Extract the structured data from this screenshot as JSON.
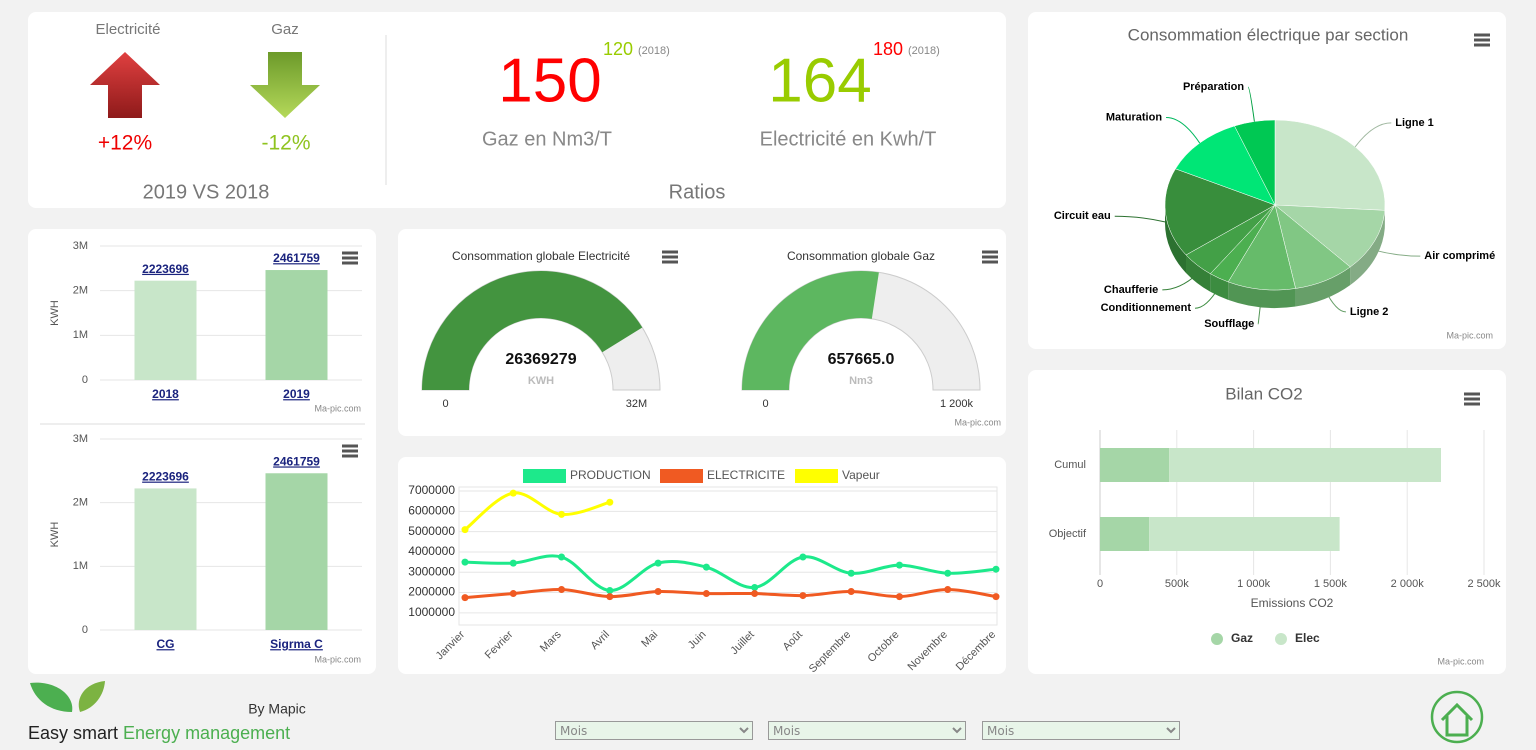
{
  "kpi": {
    "items": [
      {
        "label": "Electricité",
        "change": "+12%"
      },
      {
        "label": "Gaz",
        "change": "-12%"
      }
    ],
    "caption": "2019 VS 2018"
  },
  "ratios": {
    "items": [
      {
        "value": 150,
        "previous": 120,
        "previous_year": "(2018)",
        "label": "Gaz en Nm3/T"
      },
      {
        "value": 164,
        "previous": 180,
        "previous_year": "(2018)",
        "label": "Electricité en Kwh/T"
      }
    ],
    "caption": "Ratios"
  },
  "chart_data": [
    {
      "type": "bar",
      "categories": [
        "2018",
        "2019"
      ],
      "values": [
        2223696,
        2461759
      ],
      "colors": [
        "#c8e6c9",
        "#a5d6a7"
      ],
      "ylabel": "KWH",
      "ylim": [
        0,
        3000000
      ],
      "yticks": [
        0,
        {
          "value": 1000000,
          "label": "1M"
        },
        {
          "value": 2000000,
          "label": "2M"
        },
        {
          "value": 3000000,
          "label": "3M"
        }
      ],
      "grid": true,
      "credit": "Ma-pic.com"
    },
    {
      "type": "bar",
      "categories": [
        "CG",
        "Sigrma C"
      ],
      "values": [
        2223696,
        2461759
      ],
      "colors": [
        "#c8e6c9",
        "#a5d6a7"
      ],
      "ylabel": "KWH",
      "ylim": [
        0,
        3000000
      ],
      "yticks": [
        0,
        {
          "value": 1000000,
          "label": "1M"
        },
        {
          "value": 2000000,
          "label": "2M"
        },
        {
          "value": 3000000,
          "label": "3M"
        }
      ],
      "grid": true,
      "credit": "Ma-pic.com"
    },
    {
      "type": "gauge",
      "title": "Consommation globale Electricité",
      "values": [
        26369279
      ],
      "unit": "KWH",
      "color": "#43943f",
      "ylim": [
        0,
        32000000
      ],
      "yticks": [
        0,
        {
          "value": 32000000,
          "label": "32M"
        }
      ]
    },
    {
      "type": "gauge",
      "title": "Consommation globale Gaz",
      "values": [
        657665
      ],
      "value_labels": [
        "657665.0"
      ],
      "unit": "Nm3",
      "color": "#5db760",
      "ylim": [
        0,
        1200000
      ],
      "yticks": [
        0,
        {
          "value": 1200000,
          "label": "1 200k"
        }
      ],
      "credit": "Ma-pic.com"
    },
    {
      "type": "line",
      "categories": [
        "Janvier",
        "Fevrier",
        "Mars",
        "Avril",
        "Mai",
        "Juin",
        "Juillet",
        "Août",
        "Septembre",
        "Octobre",
        "Novembre",
        "Décembre"
      ],
      "series": [
        {
          "name": "PRODUCTION",
          "color": "#1de98b",
          "values": [
            3500000,
            3450000,
            3750000,
            2100000,
            3450000,
            3250000,
            2250000,
            3750000,
            2950000,
            3350000,
            2950000,
            3150000
          ]
        },
        {
          "name": "ELECTRICITE",
          "color": "#f05a22",
          "values": [
            1750000,
            1950000,
            2150000,
            1800000,
            2050000,
            1950000,
            1950000,
            1850000,
            2050000,
            1800000,
            2150000,
            1800000
          ]
        },
        {
          "name": "Vapeur",
          "color": "#ffff00",
          "values": [
            5100000,
            6900000,
            5850000,
            6450000,
            null,
            null,
            null,
            null,
            null,
            null,
            null,
            null
          ]
        }
      ],
      "ylim": [
        400000,
        7200000
      ],
      "yticks": [
        1000000,
        2000000,
        3000000,
        4000000,
        5000000,
        6000000,
        7000000
      ],
      "grid": true,
      "legend": "top"
    },
    {
      "type": "pie",
      "title": "Consommation électrique par section",
      "categories": [
        "Ligne 1",
        "Air comprimé",
        "Ligne 2",
        "Soufflage",
        "Conditionnement",
        "Chaufferie",
        "Circuit eau",
        "Maturation",
        "Préparation"
      ],
      "values": [
        26,
        12,
        9,
        10,
        3,
        5,
        17,
        12,
        6
      ],
      "colors": [
        "#c8e6c9",
        "#a5d6a7",
        "#81c784",
        "#66bb6a",
        "#4caf50",
        "#43a047",
        "#388e3c",
        "#00e676",
        "#00c853"
      ],
      "credit": "Ma-pic.com"
    },
    {
      "type": "bar",
      "orientation": "horizontal",
      "stacked": true,
      "title": "Bilan CO2",
      "categories": [
        "Cumul",
        "Objectif"
      ],
      "series": [
        {
          "name": "Gaz",
          "color": "#a5d6a7",
          "values": [
            450000,
            320000
          ]
        },
        {
          "name": "Elec",
          "color": "#c8e6c9",
          "values": [
            1770000,
            1240000
          ]
        }
      ],
      "xlabel": "Emissions CO2",
      "xlim": [
        0,
        2500000
      ],
      "xticks": [
        0,
        {
          "value": 500000,
          "label": "500k"
        },
        {
          "value": 1000000,
          "label": "1 000k"
        },
        {
          "value": 1500000,
          "label": "1 500k"
        },
        {
          "value": 2000000,
          "label": "2 000k"
        },
        {
          "value": 2500000,
          "label": "2 500k"
        }
      ],
      "grid": true,
      "legend": "bottom",
      "credit": "Ma-pic.com"
    }
  ],
  "footer": {
    "by": "By Mapic",
    "brand": "Easy smart",
    "brand_accent": "Energy management",
    "selects": [
      "Mois",
      "Mois",
      "Mois"
    ]
  }
}
